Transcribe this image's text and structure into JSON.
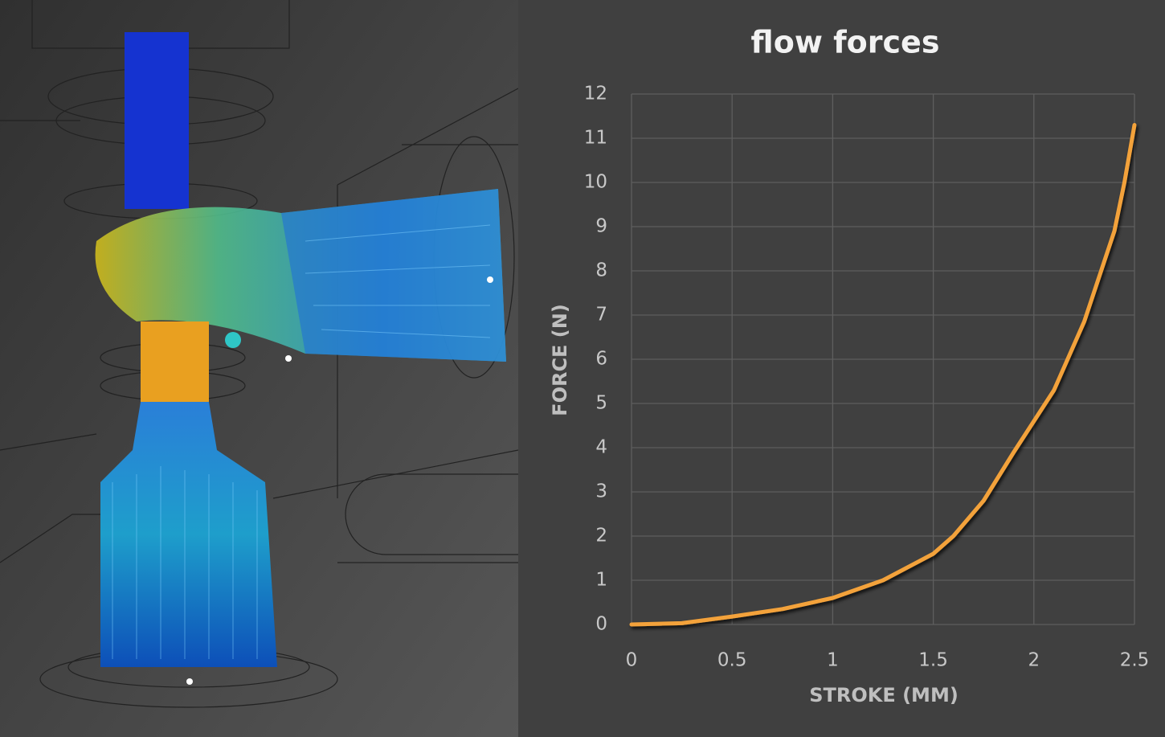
{
  "chart_data": {
    "type": "line",
    "title": "flow forces",
    "x_label": "STROKE (MM)",
    "y_label": "FORCE (N)",
    "x": [
      0,
      0.25,
      0.5,
      0.75,
      1,
      1.25,
      1.5,
      1.6,
      1.75,
      1.9,
      2,
      2.1,
      2.25,
      2.4,
      2.45,
      2.5
    ],
    "series": [
      {
        "color": "#f3a23a",
        "values": [
          0,
          0.03,
          0.18,
          0.35,
          0.6,
          1.0,
          1.6,
          2.0,
          2.8,
          3.9,
          4.6,
          5.3,
          6.85,
          8.9,
          10.0,
          11.3
        ]
      }
    ],
    "xlim": [
      0,
      2.5
    ],
    "xticks": [
      0,
      0.5,
      1,
      1.5,
      2,
      2.5
    ],
    "ylim": [
      0,
      12
    ],
    "yticks": [
      0,
      1,
      2,
      3,
      4,
      5,
      6,
      7,
      8,
      9,
      10,
      11,
      12
    ],
    "grid": true
  }
}
